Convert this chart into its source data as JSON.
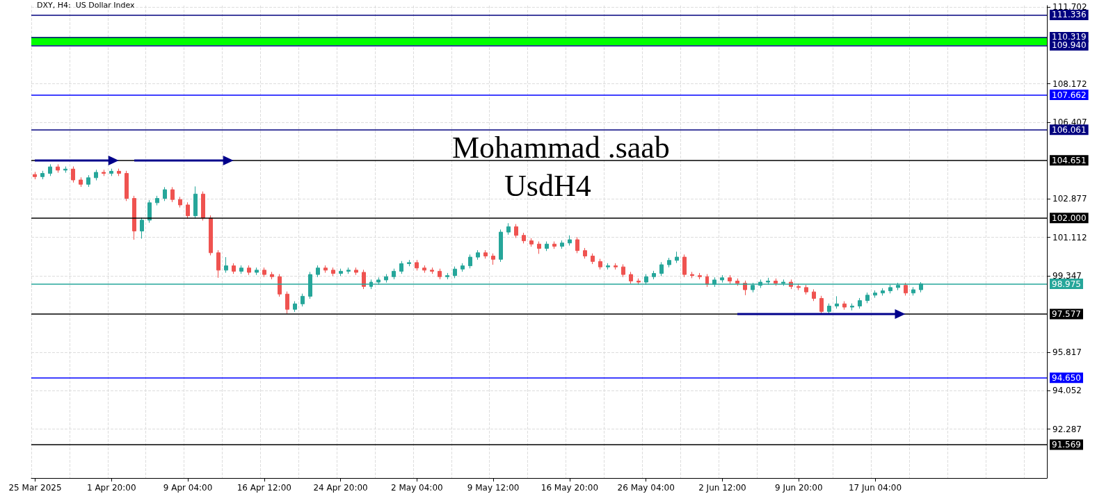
{
  "chart_data": {
    "type": "candlestick",
    "title": "DXY, H4:  US Dollar Index",
    "annotations": [
      "Mohammad .saab",
      "UsdH4"
    ],
    "categories": [
      "25 Mar 2025",
      null,
      null,
      null,
      null,
      null,
      null,
      null,
      null,
      null,
      "1 Apr 20:00",
      null,
      null,
      null,
      null,
      null,
      null,
      null,
      null,
      null,
      "9 Apr 04:00",
      null,
      null,
      null,
      null,
      null,
      null,
      null,
      null,
      null,
      "16 Apr 12:00",
      null,
      null,
      null,
      null,
      null,
      null,
      null,
      null,
      null,
      "24 Apr 20:00",
      null,
      null,
      null,
      null,
      null,
      null,
      null,
      null,
      null,
      "2 May 04:00",
      null,
      null,
      null,
      null,
      null,
      null,
      null,
      null,
      null,
      "9 May 12:00",
      null,
      null,
      null,
      null,
      null,
      null,
      null,
      null,
      null,
      "16 May 20:00",
      null,
      null,
      null,
      null,
      null,
      null,
      null,
      null,
      null,
      "26 May 04:00",
      null,
      null,
      null,
      null,
      null,
      null,
      null,
      null,
      null,
      "2 Jun 12:00",
      null,
      null,
      null,
      null,
      null,
      null,
      null,
      null,
      null,
      "9 Jun 20:00",
      null,
      null,
      null,
      null,
      null,
      null,
      null,
      null,
      null,
      "17 Jun 04:00",
      null,
      null,
      null,
      null,
      null,
      null,
      null,
      null,
      null,
      null,
      null,
      null,
      null,
      null,
      null,
      null,
      null,
      null,
      null,
      null,
      null,
      null
    ],
    "colors": [
      "#ef5350",
      "#26a69a",
      "#26a69a",
      "#ef5350",
      "#26a69a",
      "#ef5350",
      "#ef5350",
      "#26a69a",
      "#26a69a",
      "#ef5350",
      "#26a69a",
      "#ef5350",
      "#ef5350",
      "#ef5350",
      "#26a69a",
      "#26a69a",
      "#26a69a",
      "#26a69a",
      "#ef5350",
      "#ef5350",
      "#ef5350",
      "#26a69a",
      "#ef5350",
      "#ef5350",
      "#ef5350",
      "#26a69a",
      "#ef5350",
      "#26a69a",
      "#ef5350",
      "#26a69a",
      "#ef5350",
      "#ef5350",
      "#ef5350",
      "#ef5350",
      "#26a69a",
      "#26a69a",
      "#26a69a",
      "#26a69a",
      "#ef5350",
      "#ef5350",
      "#26a69a",
      "#26a69a",
      "#ef5350",
      "#ef5350",
      "#26a69a",
      "#26a69a",
      "#26a69a",
      "#26a69a",
      "#26a69a",
      "#26a69a",
      "#ef5350",
      "#ef5350",
      "#ef5350",
      "#ef5350",
      "#26a69a",
      "#26a69a",
      "#26a69a",
      "#26a69a",
      "#26a69a",
      "#ef5350",
      "#ef5350",
      "#26a69a",
      "#26a69a",
      "#ef5350",
      "#ef5350",
      "#ef5350",
      "#ef5350",
      "#26a69a",
      "#ef5350",
      "#26a69a",
      "#26a69a",
      "#ef5350",
      "#ef5350",
      "#ef5350",
      "#ef5350",
      "#26a69a",
      "#ef5350",
      "#ef5350",
      "#ef5350",
      "#ef5350",
      "#26a69a",
      "#26a69a",
      "#26a69a",
      "#26a69a",
      "#26a69a",
      "#ef5350",
      "#ef5350",
      "#ef5350",
      "#ef5350",
      "#26a69a",
      "#26a69a",
      "#ef5350",
      "#ef5350",
      "#ef5350",
      "#26a69a",
      "#26a69a",
      "#26a69a",
      "#ef5350",
      "#26a69a",
      "#ef5350",
      "#ef5350",
      "#ef5350",
      "#ef5350",
      "#ef5350",
      "#26a69a",
      "#26a69a",
      "#ef5350",
      "#26a69a",
      "#26a69a",
      "#26a69a",
      "#26a69a",
      "#26a69a",
      "#26a69a",
      "#26a69a",
      "#ef5350",
      "#26a69a",
      "#26a69a",
      null,
      null,
      null,
      null,
      null,
      null,
      null,
      null,
      null,
      null,
      null,
      null,
      null,
      null,
      null,
      null
    ],
    "ohlc": [
      [
        104.0,
        104.12,
        103.78,
        103.9
      ],
      [
        103.9,
        104.17,
        103.78,
        104.05
      ],
      [
        104.05,
        104.47,
        103.93,
        104.35
      ],
      [
        104.35,
        104.47,
        104.08,
        104.2
      ],
      [
        104.2,
        104.37,
        104.08,
        104.25
      ],
      [
        104.25,
        104.37,
        103.63,
        103.75
      ],
      [
        103.75,
        103.87,
        103.43,
        103.55
      ],
      [
        103.55,
        103.97,
        103.43,
        103.85
      ],
      [
        103.85,
        104.22,
        103.73,
        104.1
      ],
      [
        104.1,
        104.22,
        103.93,
        104.05
      ],
      [
        104.05,
        104.27,
        103.93,
        104.15
      ],
      [
        104.15,
        104.27,
        103.93,
        104.05
      ],
      [
        104.05,
        104.17,
        102.78,
        102.9
      ],
      [
        102.9,
        103.02,
        101.0,
        101.4
      ],
      [
        101.4,
        102.02,
        101.05,
        101.9
      ],
      [
        101.9,
        102.82,
        101.78,
        102.7
      ],
      [
        102.7,
        103.02,
        102.58,
        102.9
      ],
      [
        102.9,
        103.42,
        102.78,
        103.3
      ],
      [
        103.3,
        103.42,
        102.73,
        102.85
      ],
      [
        102.85,
        102.97,
        102.48,
        102.6
      ],
      [
        102.6,
        102.72,
        101.98,
        102.1
      ],
      [
        102.1,
        103.45,
        101.98,
        103.1
      ],
      [
        103.1,
        103.22,
        101.88,
        102.0
      ],
      [
        102.0,
        102.12,
        100.28,
        100.4
      ],
      [
        100.4,
        100.52,
        99.25,
        99.6
      ],
      [
        99.6,
        100.2,
        99.48,
        99.8
      ],
      [
        99.8,
        99.92,
        99.43,
        99.55
      ],
      [
        99.55,
        99.82,
        99.43,
        99.7
      ],
      [
        99.7,
        99.82,
        99.38,
        99.5
      ],
      [
        99.5,
        99.72,
        99.38,
        99.6
      ],
      [
        99.6,
        99.72,
        99.28,
        99.4
      ],
      [
        99.4,
        99.52,
        99.18,
        99.3
      ],
      [
        99.3,
        99.42,
        98.38,
        98.5
      ],
      [
        98.5,
        98.62,
        97.6,
        97.8
      ],
      [
        97.8,
        98.17,
        97.68,
        98.05
      ],
      [
        98.05,
        98.52,
        97.93,
        98.4
      ],
      [
        98.4,
        99.52,
        98.28,
        99.4
      ],
      [
        99.4,
        99.82,
        99.28,
        99.7
      ],
      [
        99.7,
        99.82,
        99.48,
        99.6
      ],
      [
        99.6,
        99.72,
        99.33,
        99.45
      ],
      [
        99.45,
        99.67,
        99.33,
        99.55
      ],
      [
        99.55,
        99.72,
        99.43,
        99.6
      ],
      [
        99.6,
        99.72,
        99.38,
        99.5
      ],
      [
        99.5,
        99.62,
        98.73,
        98.85
      ],
      [
        98.85,
        99.17,
        98.73,
        99.05
      ],
      [
        99.05,
        99.27,
        98.93,
        99.15
      ],
      [
        99.15,
        99.42,
        99.03,
        99.3
      ],
      [
        99.3,
        99.67,
        99.18,
        99.55
      ],
      [
        99.55,
        100.02,
        99.43,
        99.9
      ],
      [
        99.9,
        100.07,
        99.78,
        99.95
      ],
      [
        99.95,
        100.07,
        99.58,
        99.7
      ],
      [
        99.7,
        99.82,
        99.48,
        99.6
      ],
      [
        99.6,
        99.72,
        99.43,
        99.55
      ],
      [
        99.55,
        99.67,
        99.18,
        99.3
      ],
      [
        99.3,
        99.47,
        99.18,
        99.35
      ],
      [
        99.35,
        99.77,
        99.23,
        99.65
      ],
      [
        99.65,
        99.92,
        99.53,
        99.8
      ],
      [
        99.8,
        100.32,
        99.68,
        100.2
      ],
      [
        100.2,
        100.52,
        100.08,
        100.4
      ],
      [
        100.4,
        100.52,
        100.13,
        100.25
      ],
      [
        100.25,
        100.37,
        99.85,
        100.1
      ],
      [
        100.1,
        101.47,
        99.98,
        101.35
      ],
      [
        101.35,
        101.76,
        101.23,
        101.6
      ],
      [
        101.6,
        101.72,
        101.08,
        101.2
      ],
      [
        101.2,
        101.32,
        100.83,
        100.95
      ],
      [
        100.95,
        101.07,
        100.68,
        100.8
      ],
      [
        100.8,
        100.92,
        100.35,
        100.6
      ],
      [
        100.6,
        100.92,
        100.48,
        100.8
      ],
      [
        100.8,
        100.92,
        100.58,
        100.7
      ],
      [
        100.7,
        100.97,
        100.58,
        100.85
      ],
      [
        100.85,
        101.2,
        100.73,
        101.0
      ],
      [
        101.0,
        101.12,
        100.38,
        100.5
      ],
      [
        100.5,
        100.62,
        100.13,
        100.25
      ],
      [
        100.25,
        100.37,
        99.88,
        100.0
      ],
      [
        100.0,
        100.12,
        99.63,
        99.75
      ],
      [
        99.75,
        99.92,
        99.63,
        99.8
      ],
      [
        99.8,
        99.92,
        99.63,
        99.75
      ],
      [
        99.75,
        99.87,
        99.28,
        99.4
      ],
      [
        99.4,
        99.52,
        98.98,
        99.1
      ],
      [
        99.1,
        99.22,
        98.93,
        99.05
      ],
      [
        99.05,
        99.42,
        98.93,
        99.3
      ],
      [
        99.3,
        99.57,
        99.18,
        99.45
      ],
      [
        99.45,
        99.97,
        99.33,
        99.85
      ],
      [
        99.85,
        100.17,
        99.73,
        100.05
      ],
      [
        100.05,
        100.45,
        99.93,
        100.2
      ],
      [
        100.2,
        100.32,
        99.28,
        99.4
      ],
      [
        99.4,
        99.52,
        99.23,
        99.35
      ],
      [
        99.35,
        99.47,
        99.18,
        99.3
      ],
      [
        99.3,
        99.42,
        98.83,
        98.95
      ],
      [
        98.95,
        99.27,
        98.83,
        99.15
      ],
      [
        99.15,
        99.37,
        99.03,
        99.25
      ],
      [
        99.25,
        99.37,
        98.98,
        99.1
      ],
      [
        99.1,
        99.22,
        98.88,
        99.0
      ],
      [
        99.0,
        99.12,
        98.45,
        98.7
      ],
      [
        98.7,
        99.02,
        98.58,
        98.9
      ],
      [
        98.9,
        99.17,
        98.78,
        99.05
      ],
      [
        99.05,
        99.25,
        98.93,
        99.1
      ],
      [
        99.1,
        99.22,
        98.88,
        99.0
      ],
      [
        99.0,
        99.17,
        98.88,
        99.05
      ],
      [
        99.05,
        99.17,
        98.73,
        98.85
      ],
      [
        98.85,
        98.97,
        98.68,
        98.8
      ],
      [
        98.8,
        98.92,
        98.48,
        98.6
      ],
      [
        98.6,
        98.72,
        98.18,
        98.3
      ],
      [
        98.3,
        98.42,
        97.58,
        97.7
      ],
      [
        97.7,
        98.07,
        97.58,
        97.95
      ],
      [
        97.95,
        98.4,
        97.83,
        98.05
      ],
      [
        98.05,
        98.17,
        97.78,
        97.9
      ],
      [
        97.9,
        98.07,
        97.75,
        97.95
      ],
      [
        97.95,
        98.32,
        97.83,
        98.2
      ],
      [
        98.2,
        98.57,
        98.08,
        98.45
      ],
      [
        98.45,
        98.67,
        98.33,
        98.55
      ],
      [
        98.55,
        98.77,
        98.43,
        98.65
      ],
      [
        98.65,
        98.92,
        98.53,
        98.8
      ],
      [
        98.8,
        99.02,
        98.68,
        98.9
      ],
      [
        98.9,
        99.02,
        98.43,
        98.55
      ],
      [
        98.55,
        98.82,
        98.43,
        98.7
      ],
      [
        98.7,
        99.05,
        98.58,
        98.975
      ],
      null,
      null,
      null,
      null,
      null,
      null,
      null,
      null,
      null,
      null,
      null,
      null,
      null,
      null,
      null,
      null
    ],
    "ylim": [
      90.04,
      111.77
    ],
    "yticks": [
      92.287,
      94.052,
      95.817,
      99.347,
      101.112,
      102.877,
      106.407,
      108.172,
      111.702
    ],
    "grid": true,
    "ref_lines": [
      {
        "axis": "y",
        "value": 111.336,
        "label": "111.336",
        "color": "#00007f"
      },
      {
        "axis": "y",
        "value": 110.319,
        "label": "110.319",
        "color": "#00007f"
      },
      {
        "axis": "y",
        "value": 109.94,
        "label": "109.940",
        "color": "#00007f"
      },
      {
        "axis": "y",
        "value": 107.662,
        "label": "107.662",
        "color": "#0000ff"
      },
      {
        "axis": "y",
        "value": 106.061,
        "label": "106.061",
        "color": "#00007f"
      },
      {
        "axis": "y",
        "value": 104.651,
        "label": "104.651",
        "color": "#000000"
      },
      {
        "axis": "y",
        "value": 102.0,
        "label": "102.000",
        "color": "#000000"
      },
      {
        "axis": "y",
        "value": 98.975,
        "label": "98.975",
        "color": "#26a69a"
      },
      {
        "axis": "y",
        "value": 97.577,
        "label": "97.577",
        "color": "#000000"
      },
      {
        "axis": "y",
        "value": 94.65,
        "label": "94.650",
        "color": "#0000ff"
      },
      {
        "axis": "y",
        "value": 91.569,
        "label": "91.569",
        "color": "#000000"
      }
    ],
    "bands": [
      {
        "axis": "y",
        "from": 109.94,
        "to": 110.319,
        "color": "#00ff00"
      }
    ]
  }
}
